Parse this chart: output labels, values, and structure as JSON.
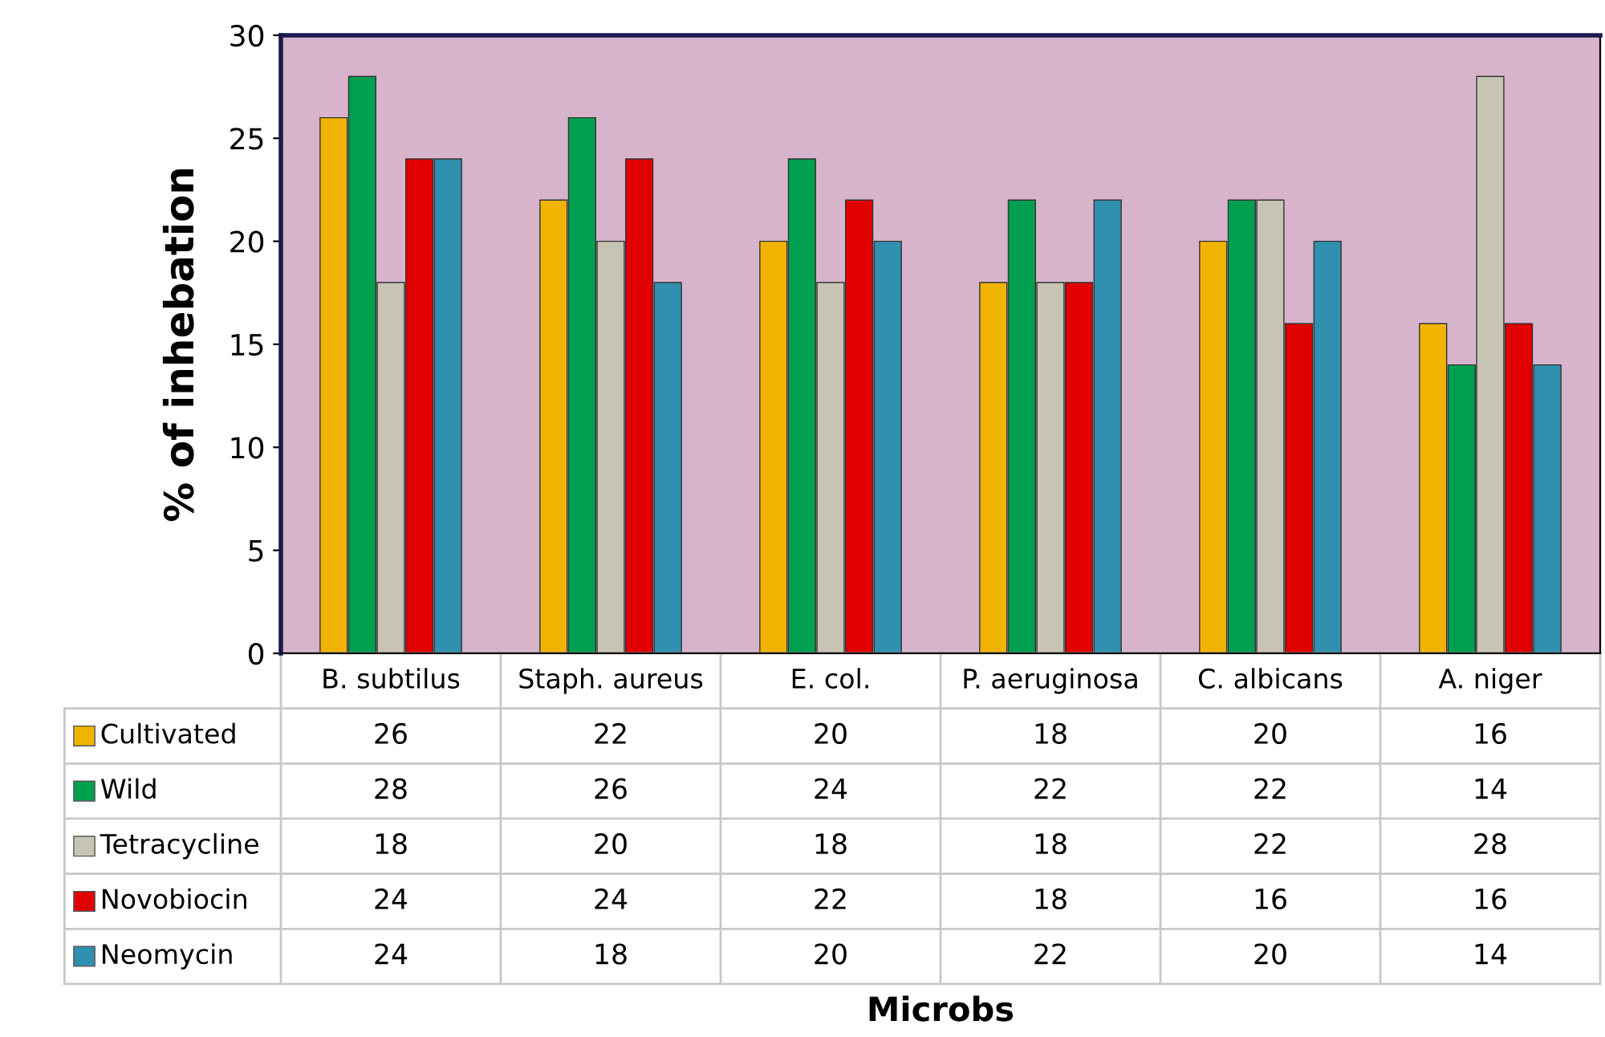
{
  "chart_data": {
    "type": "bar",
    "annotations": [
      "Microbs"
    ],
    "ylabel": "% of inhebation",
    "categories": [
      "B. subtilus",
      "Staph. aureus",
      "E. col.",
      "P. aeruginosa",
      "C. albicans",
      "A. niger"
    ],
    "series": [
      {
        "name": "Cultivated",
        "color": "#f0b400",
        "values": [
          26,
          22,
          20,
          18,
          20,
          16
        ]
      },
      {
        "name": "Wild",
        "color": "#00a050",
        "values": [
          28,
          26,
          24,
          22,
          22,
          14
        ]
      },
      {
        "name": "Tetracycline",
        "color": "#c8c4b4",
        "values": [
          18,
          20,
          18,
          18,
          22,
          28
        ]
      },
      {
        "name": "Novobiocin",
        "color": "#e00000",
        "values": [
          24,
          24,
          22,
          18,
          16,
          16
        ]
      },
      {
        "name": "Neomycin",
        "color": "#3090b0",
        "values": [
          24,
          18,
          20,
          22,
          20,
          14
        ]
      }
    ],
    "ylim": [
      0,
      30
    ],
    "yticks": [
      0,
      5,
      10,
      15,
      20,
      25,
      30
    ],
    "data_labels": true,
    "legend": "bottom"
  }
}
